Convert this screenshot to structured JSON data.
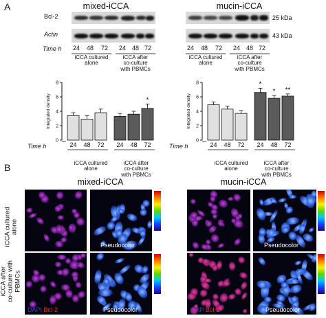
{
  "panel_a": {
    "letter": "A",
    "left_title": "mixed-iCCA",
    "right_title": "mucin-iCCA",
    "blot_labels": [
      "Bcl-2",
      "Actin"
    ],
    "kda_labels": [
      "25 kDa",
      "43 kDa"
    ],
    "time_label": "Time h",
    "times": [
      "24",
      "48",
      "72",
      "24",
      "48",
      "72"
    ],
    "group_alone": "iCCA cultured alone",
    "group_alone_l1": "iCCA cultured",
    "group_alone_l2": "alone",
    "group_co_l1": "iCCA after",
    "group_co_l2": "co-culture",
    "group_co_l3": "with PBMCs"
  },
  "chart_data": [
    {
      "type": "bar",
      "panel": "mixed-iCCA",
      "ylabel": "Integrated density",
      "ylim": [
        0,
        8
      ],
      "yticks": [
        0,
        2,
        4,
        6,
        8
      ],
      "categories": [
        "24",
        "48",
        "72",
        "24",
        "48",
        "72"
      ],
      "values": [
        3.4,
        2.9,
        3.8,
        3.3,
        3.6,
        4.4
      ],
      "errors": [
        0.4,
        0.5,
        0.5,
        0.4,
        0.4,
        0.6
      ],
      "colors": [
        "#e0e0e0",
        "#e0e0e0",
        "#e0e0e0",
        "#5a5a5a",
        "#5a5a5a",
        "#5a5a5a"
      ],
      "annotations": [
        "",
        "",
        "",
        "",
        "",
        "*"
      ]
    },
    {
      "type": "bar",
      "panel": "mucin-iCCA",
      "ylabel": "Integrated density",
      "ylim": [
        0,
        8
      ],
      "yticks": [
        0,
        2,
        4,
        6,
        8
      ],
      "categories": [
        "24",
        "48",
        "72",
        "24",
        "48",
        "72"
      ],
      "values": [
        4.9,
        4.3,
        3.7,
        6.6,
        5.8,
        6.1
      ],
      "errors": [
        0.4,
        0.4,
        0.4,
        0.6,
        0.4,
        0.3
      ],
      "colors": [
        "#e0e0e0",
        "#e0e0e0",
        "#e0e0e0",
        "#5a5a5a",
        "#5a5a5a",
        "#5a5a5a"
      ],
      "annotations": [
        "",
        "",
        "",
        "*",
        "*",
        "**"
      ]
    }
  ],
  "panel_b": {
    "letter": "B",
    "left_title": "mixed-iCCA",
    "right_title": "mucin-iCCA",
    "row1_l1": "iCCA cultured",
    "row1_l2": "alone",
    "row2_l1": "iCCA after",
    "row2_l2": "co-culture with",
    "row2_l3": "PBMCs",
    "dapi_left": "DAPI",
    "dapi_right": "DAP",
    "bcl2": "Bcl-2",
    "pseudocolor": "Pseudocolor",
    "colors": {
      "dapi": "#3a3aff",
      "bcl2": "#ff2020"
    }
  }
}
